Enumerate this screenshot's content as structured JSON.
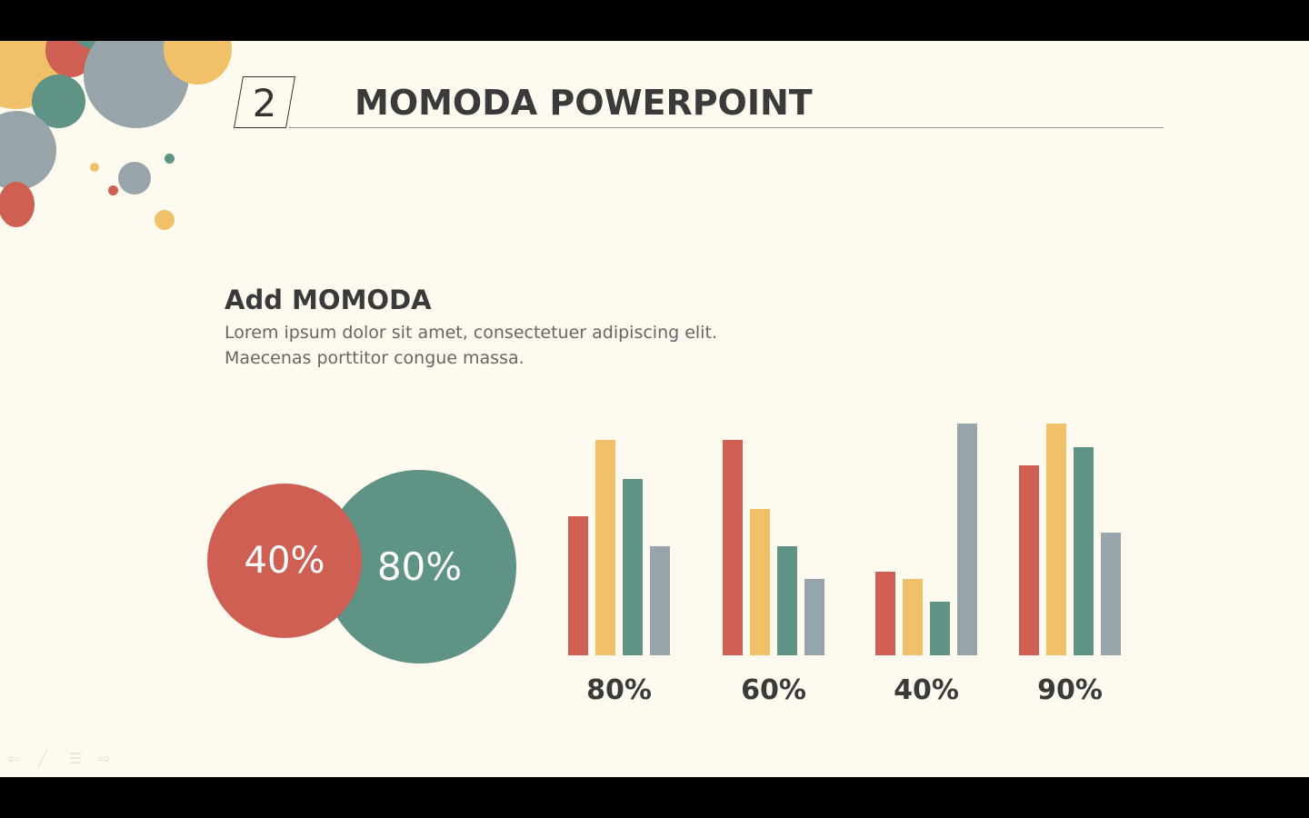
{
  "slide": {
    "number": "2",
    "title": "MOMODA POWERPOINT",
    "subtitle": "Add MOMODA",
    "body_lines": [
      "Lorem ipsum dolor sit amet, consectetuer adipiscing elit.",
      "Maecenas porttitor congue massa."
    ]
  },
  "colors": {
    "red": "#d05f53",
    "yellow": "#f1c16a",
    "teal": "#5e9386",
    "gray": "#97a5aa",
    "background": "#fefaf0"
  },
  "circles": {
    "left_label": "40%",
    "right_label": "80%"
  },
  "chart_data": {
    "type": "bar",
    "categories": [
      "80%",
      "60%",
      "40%",
      "90%"
    ],
    "series": [
      {
        "color": "#d05f53",
        "values": [
          60,
          93,
          36,
          82
        ]
      },
      {
        "color": "#f1c16a",
        "values": [
          93,
          63,
          33,
          100
        ]
      },
      {
        "color": "#5e9386",
        "values": [
          76,
          47,
          23,
          90
        ]
      },
      {
        "color": "#97a5aa",
        "values": [
          47,
          33,
          100,
          53
        ]
      }
    ],
    "ylim": [
      0,
      100
    ],
    "grid": false
  },
  "nav_icons": [
    "arrow-left-icon",
    "pen-icon",
    "menu-icon",
    "arrow-right-icon"
  ]
}
